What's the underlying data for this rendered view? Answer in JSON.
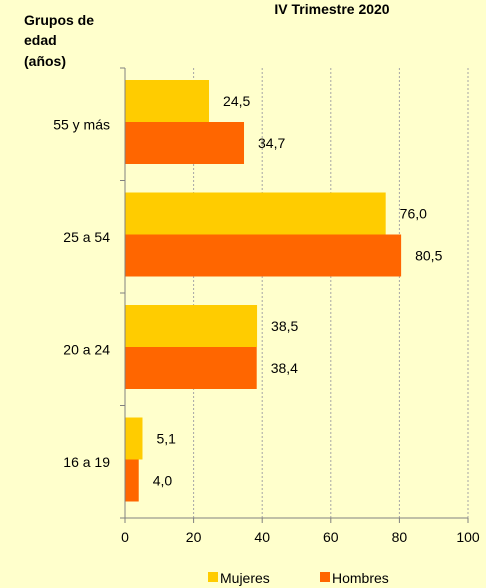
{
  "chart_data": {
    "type": "bar",
    "orientation": "horizontal",
    "title": "IV Trimestre 2020",
    "ylabel_lines": [
      "Grupos de",
      "edad",
      "(años)"
    ],
    "categories": [
      "55 y más",
      "25 a 54",
      "20 a 24",
      "16 a 19"
    ],
    "series": [
      {
        "name": "Mujeres",
        "color": "#ffcc00",
        "values": [
          24.5,
          76.0,
          38.5,
          5.1
        ],
        "labels": [
          "24,5",
          "76,0",
          "38,5",
          "5,1"
        ]
      },
      {
        "name": "Hombres",
        "color": "#ff6600",
        "values": [
          34.7,
          80.5,
          38.4,
          4.0
        ],
        "labels": [
          "34,7",
          "80,5",
          "38,4",
          "4,0"
        ]
      }
    ],
    "xlim": [
      0,
      100
    ],
    "xticks": [
      0,
      20,
      40,
      60,
      80,
      100
    ],
    "grid": "vertical-dashed",
    "legend_position": "bottom"
  }
}
